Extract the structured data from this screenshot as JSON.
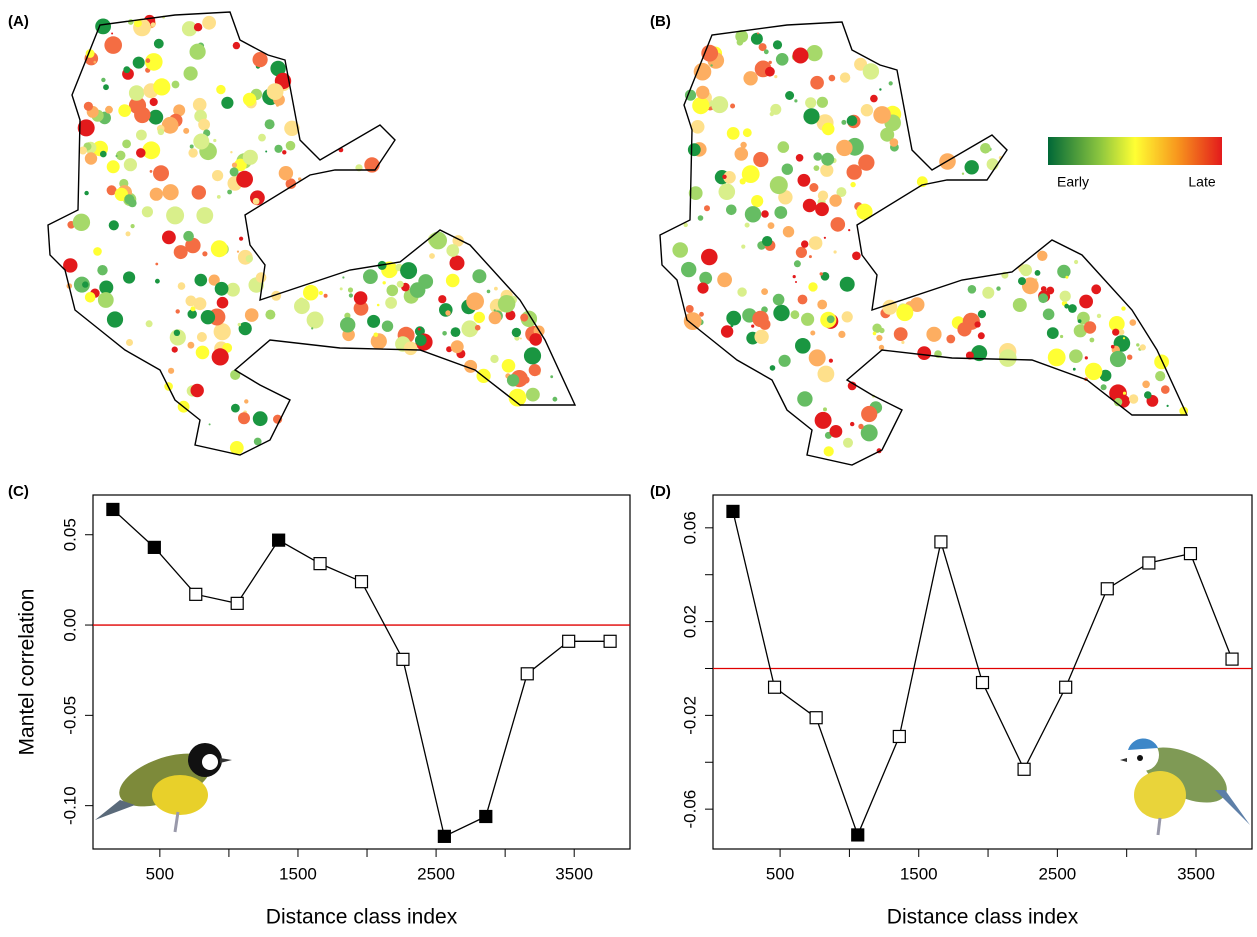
{
  "panels": [
    "(A)",
    "(B)",
    "(C)",
    "(D)"
  ],
  "color_scale": {
    "low": "Early",
    "high": "Late"
  },
  "chart_data": [
    {
      "type": "line",
      "panel": "(C)",
      "x_label": "Distance class index",
      "y_label": "Mantel correlation",
      "x": [
        160,
        460,
        760,
        1060,
        1360,
        1660,
        1960,
        2260,
        2560,
        2860,
        3160,
        3460,
        3760
      ],
      "values": [
        0.064,
        0.043,
        0.017,
        0.012,
        0.047,
        0.034,
        0.024,
        -0.019,
        -0.117,
        -0.106,
        -0.027,
        -0.009,
        -0.009
      ],
      "filled": [
        true,
        true,
        false,
        false,
        true,
        false,
        false,
        false,
        true,
        true,
        false,
        false,
        false
      ],
      "xlim": [
        16,
        3904
      ],
      "xticks": [
        500,
        1500,
        2500,
        3500
      ],
      "xminor": [
        1000,
        2000,
        3000
      ],
      "ylim": [
        -0.124,
        0.072
      ],
      "yticks": [
        0.05,
        {
          "value": 0,
          "label": "0.00"
        },
        -0.05,
        {
          "value": -0.1,
          "label": "-0.10"
        }
      ],
      "hline": 0,
      "hline_color": "#e00000",
      "color": "#000000"
    },
    {
      "type": "line",
      "panel": "(D)",
      "x_label": "Distance class index",
      "x": [
        160,
        460,
        760,
        1060,
        1360,
        1660,
        1960,
        2260,
        2560,
        2860,
        3160,
        3460,
        3760
      ],
      "values": [
        0.067,
        -0.008,
        -0.021,
        -0.071,
        -0.029,
        0.054,
        -0.006,
        -0.043,
        -0.008,
        0.034,
        0.045,
        0.049,
        0.004
      ],
      "filled": [
        true,
        false,
        false,
        true,
        false,
        false,
        false,
        false,
        false,
        false,
        false,
        false,
        false
      ],
      "xlim": [
        16,
        3904
      ],
      "xticks": [
        500,
        1500,
        2500,
        3500
      ],
      "xminor": [
        1000,
        2000,
        3000
      ],
      "ylim": [
        -0.077,
        0.074
      ],
      "yticks": [
        0.06,
        0.02,
        -0.02,
        -0.06
      ],
      "yminor": [
        0.04,
        0,
        -0.04
      ],
      "hline": 0,
      "hline_color": "#e00000",
      "color": "#000000"
    }
  ]
}
